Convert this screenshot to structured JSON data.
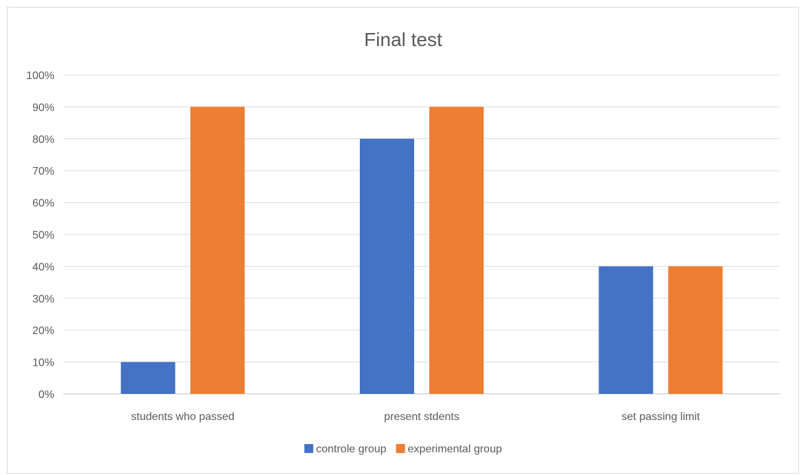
{
  "chart_data": {
    "type": "bar",
    "title": "Final test",
    "xlabel": "",
    "ylabel": "",
    "categories": [
      "students who passed",
      "present stdents",
      "set passing limit"
    ],
    "series": [
      {
        "name": "controle group",
        "color": "#4472C4",
        "values": [
          10,
          80,
          40
        ]
      },
      {
        "name": "experimental group",
        "color": "#ED7D31",
        "values": [
          90,
          90,
          40
        ]
      }
    ],
    "ylim": [
      0,
      100
    ],
    "yticks": [
      "0%",
      "10%",
      "20%",
      "30%",
      "40%",
      "50%",
      "60%",
      "70%",
      "80%",
      "90%",
      "100%"
    ],
    "grid": true,
    "legend_position": "bottom"
  }
}
